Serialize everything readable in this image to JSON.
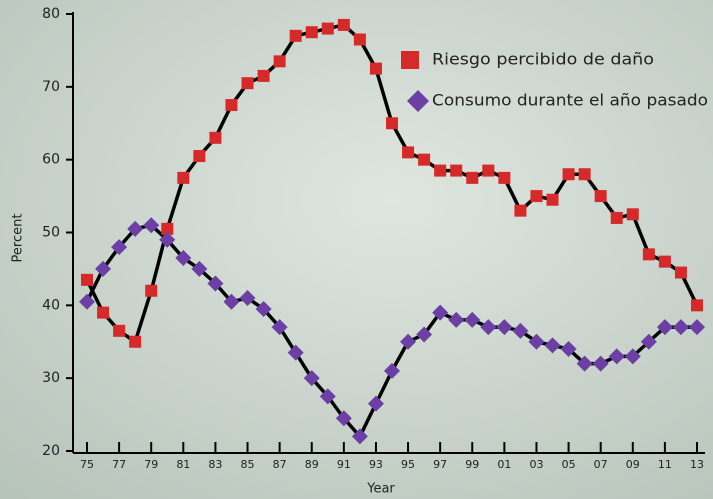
{
  "chart_data": {
    "type": "line",
    "x": [
      1975,
      1976,
      1977,
      1978,
      1979,
      1980,
      1981,
      1982,
      1983,
      1984,
      1985,
      1986,
      1987,
      1988,
      1989,
      1990,
      1991,
      1992,
      1993,
      1994,
      1995,
      1996,
      1997,
      1998,
      1999,
      2000,
      2001,
      2002,
      2003,
      2004,
      2005,
      2006,
      2007,
      2008,
      2009,
      2010,
      2011,
      2012,
      2013
    ],
    "series": [
      {
        "name": "Riesgo percibido de daño",
        "color": "#d62a2a",
        "marker": "square",
        "values": [
          43.5,
          39,
          36.5,
          35,
          42,
          50.5,
          57.5,
          60.5,
          63,
          67.5,
          70.5,
          71.5,
          73.5,
          77,
          77.5,
          78,
          78.5,
          76.5,
          72.5,
          65,
          61,
          60,
          58.5,
          58.5,
          57.5,
          58.5,
          57.5,
          53,
          55,
          54.5,
          58,
          58,
          55,
          52,
          52.5,
          47,
          46,
          44.5,
          40
        ]
      },
      {
        "name": "Consumo durante el año pasado",
        "color": "#6b3fa3",
        "marker": "diamond",
        "values": [
          40.5,
          45,
          48,
          50.5,
          51,
          49,
          46.5,
          45,
          43,
          40.5,
          41,
          39.5,
          37,
          33.5,
          30,
          27.5,
          24.5,
          22,
          26.5,
          31,
          35,
          36,
          39,
          38,
          38,
          37,
          37,
          36.5,
          35,
          34.5,
          34,
          32,
          32,
          33,
          33,
          35,
          37,
          37,
          37
        ]
      }
    ],
    "xlabel": "Year",
    "ylabel": "Percent",
    "xlim": [
      1975,
      2013
    ],
    "ylim": [
      20,
      80
    ],
    "xticks": [
      {
        "value": 1975,
        "label": "75"
      },
      {
        "value": 1977,
        "label": "77"
      },
      {
        "value": 1979,
        "label": "79"
      },
      {
        "value": 1981,
        "label": "81"
      },
      {
        "value": 1983,
        "label": "83"
      },
      {
        "value": 1985,
        "label": "85"
      },
      {
        "value": 1987,
        "label": "87"
      },
      {
        "value": 1989,
        "label": "89"
      },
      {
        "value": 1991,
        "label": "91"
      },
      {
        "value": 1993,
        "label": "93"
      },
      {
        "value": 1995,
        "label": "95"
      },
      {
        "value": 1997,
        "label": "97"
      },
      {
        "value": 1999,
        "label": "99"
      },
      {
        "value": 2001,
        "label": "01"
      },
      {
        "value": 2003,
        "label": "03"
      },
      {
        "value": 2005,
        "label": "05"
      },
      {
        "value": 2007,
        "label": "07"
      },
      {
        "value": 2009,
        "label": "09"
      },
      {
        "value": 2011,
        "label": "11"
      },
      {
        "value": 2013,
        "label": "13"
      }
    ],
    "yticks": [
      20,
      30,
      40,
      50,
      60,
      70,
      80
    ],
    "line_color": "#000000"
  }
}
